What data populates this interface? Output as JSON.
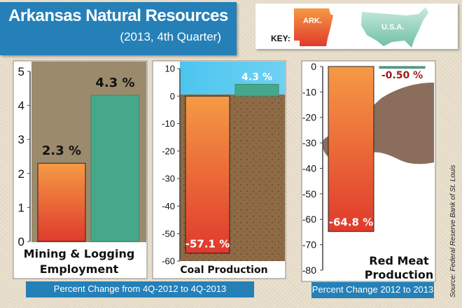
{
  "header": {
    "title": "Arkansas Natural Resources",
    "subtitle": "(2013, 4th Quarter)"
  },
  "key": {
    "label": "KEY:",
    "ark": "ARK.",
    "usa": "U.S.A."
  },
  "colors": {
    "ark_top": "#f59a45",
    "ark_bottom": "#e03a2c",
    "usa": "#46a88a",
    "caption": "#2580b8"
  },
  "chart_data": [
    {
      "type": "bar",
      "title": "Mining & Logging Employment",
      "title_lines": [
        "Mining & Logging",
        "Employment"
      ],
      "categories": [
        "ARK.",
        "U.S.A."
      ],
      "values": [
        2.3,
        4.3
      ],
      "data_labels": [
        "2.3 %",
        "4.3 %"
      ],
      "ylim": [
        0,
        5
      ],
      "yticks": [
        "0",
        "1",
        "2",
        "3",
        "4",
        "5"
      ]
    },
    {
      "type": "bar",
      "title": "Coal Production",
      "title_lines": [
        "Coal Production"
      ],
      "categories": [
        "ARK.",
        "U.S.A."
      ],
      "values": [
        -57.1,
        4.3
      ],
      "data_labels": [
        "-57.1 %",
        "4.3 %"
      ],
      "ylim": [
        -60,
        10
      ],
      "yticks": [
        "-60",
        "-50",
        "-40",
        "-30",
        "-20",
        "-10",
        "0",
        "10"
      ]
    },
    {
      "type": "bar",
      "title": "Red Meat Production",
      "title_lines": [
        "Red Meat",
        "Production"
      ],
      "categories": [
        "ARK.",
        "U.S.A."
      ],
      "values": [
        -64.8,
        -0.5
      ],
      "data_labels": [
        "-64.8 %",
        "-0.50 %"
      ],
      "ylim": [
        -80,
        0
      ],
      "yticks": [
        "-80",
        "-70",
        "-60",
        "-50",
        "-40",
        "-30",
        "-20",
        "-10",
        "0"
      ]
    }
  ],
  "captions": {
    "left": "Percent Change from 4Q-2012 to 4Q-2013",
    "right": "Percent Change 2012 to 2013"
  },
  "source": "Source: Federal Reserve Bank of St. Louis"
}
